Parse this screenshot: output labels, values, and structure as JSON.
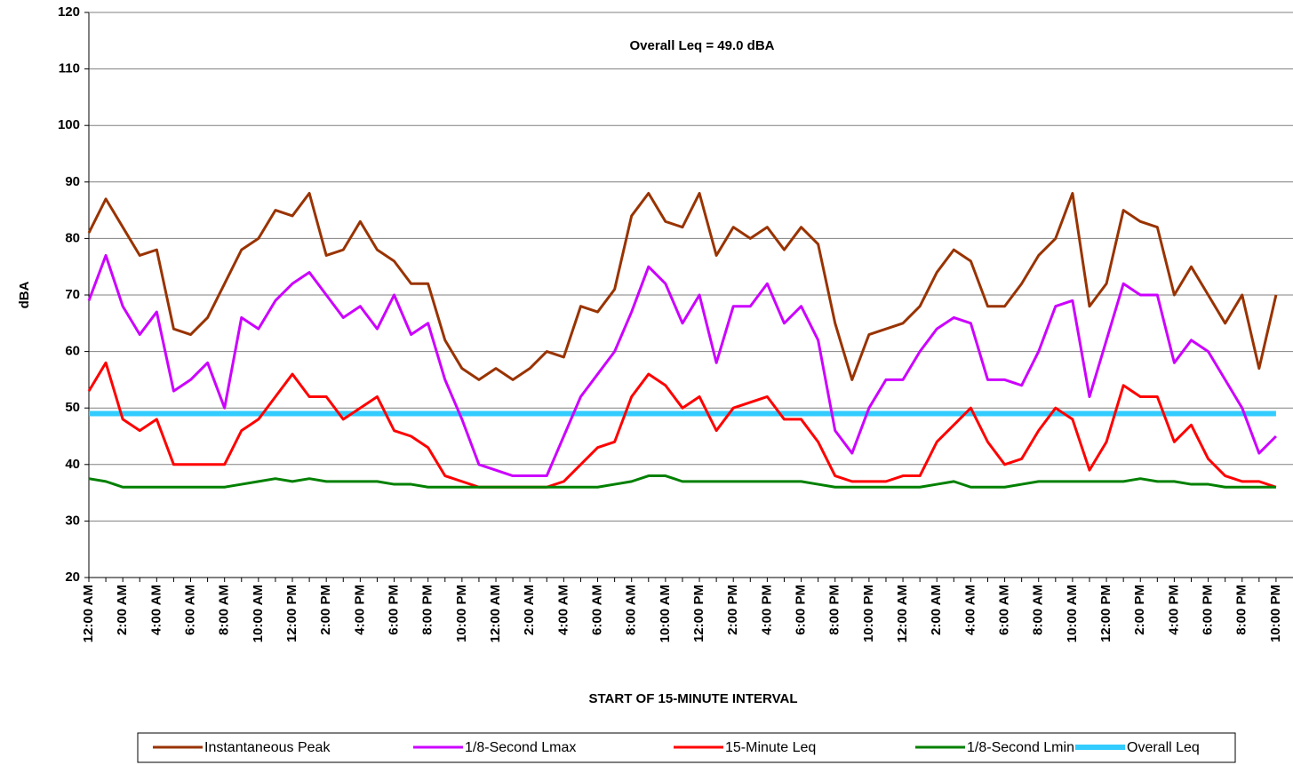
{
  "chart_data": {
    "type": "line",
    "annotation": "Overall Leq = 49.0 dBA",
    "x_label": "START OF 15-MINUTE INTERVAL",
    "y_label": "dBA",
    "categories": [
      "12:00 AM",
      null,
      "2:00 AM",
      null,
      "4:00 AM",
      null,
      "6:00 AM",
      null,
      "8:00 AM",
      null,
      "10:00 AM",
      null,
      "12:00 PM",
      null,
      "2:00 PM",
      null,
      "4:00 PM",
      null,
      "6:00 PM",
      null,
      "8:00 PM",
      null,
      "10:00 PM",
      null,
      "12:00 AM",
      null,
      "2:00 AM",
      null,
      "4:00 AM",
      null,
      "6:00 AM",
      null,
      "8:00 AM",
      null,
      "10:00 AM",
      null,
      "12:00 PM",
      null,
      "2:00 PM",
      null,
      "4:00 PM",
      null,
      "6:00 PM",
      null,
      "8:00 PM",
      null,
      "10:00 PM",
      null,
      "12:00 AM",
      null,
      "2:00 AM",
      null,
      "4:00 AM",
      null,
      "6:00 AM",
      null,
      "8:00 AM",
      null,
      "10:00 AM",
      null,
      "12:00 PM",
      null,
      "2:00 PM",
      null,
      "4:00 PM",
      null,
      "6:00 PM",
      null,
      "8:00 PM",
      null,
      "10:00 PM"
    ],
    "series": [
      {
        "name": "Instantaneous Peak",
        "color": "#993300",
        "values": [
          81,
          87,
          82,
          77,
          78,
          64,
          63,
          66,
          72,
          78,
          80,
          85,
          84,
          88,
          77,
          78,
          83,
          78,
          76,
          72,
          72,
          62,
          57,
          55,
          57,
          55,
          57,
          60,
          59,
          68,
          67,
          71,
          84,
          88,
          83,
          82,
          88,
          77,
          82,
          80,
          82,
          78,
          82,
          79,
          65,
          55,
          63,
          64,
          65,
          68,
          74,
          78,
          76,
          68,
          68,
          72,
          77,
          80,
          88,
          68,
          72,
          85,
          83,
          82,
          70,
          75,
          70,
          65,
          70,
          57,
          70
        ]
      },
      {
        "name": "1/8-Second Lmax",
        "color": "#cc00ff",
        "values": [
          69,
          77,
          68,
          63,
          67,
          53,
          55,
          58,
          50,
          66,
          64,
          69,
          72,
          74,
          70,
          66,
          68,
          64,
          70,
          63,
          65,
          55,
          48,
          40,
          39,
          38,
          38,
          38,
          45,
          52,
          56,
          60,
          67,
          75,
          72,
          65,
          70,
          58,
          68,
          68,
          72,
          65,
          68,
          62,
          46,
          42,
          50,
          55,
          55,
          60,
          64,
          66,
          65,
          55,
          55,
          54,
          60,
          68,
          69,
          52,
          62,
          72,
          70,
          70,
          58,
          62,
          60,
          55,
          50,
          42,
          45
        ]
      },
      {
        "name": "15-Minute Leq",
        "color": "#ff0000",
        "values": [
          53,
          58,
          48,
          46,
          48,
          40,
          40,
          40,
          40,
          46,
          48,
          52,
          56,
          52,
          52,
          48,
          50,
          52,
          46,
          45,
          43,
          38,
          37,
          36,
          36,
          36,
          36,
          36,
          37,
          40,
          43,
          44,
          52,
          56,
          54,
          50,
          52,
          46,
          50,
          51,
          52,
          48,
          48,
          44,
          38,
          37,
          37,
          37,
          38,
          38,
          44,
          47,
          50,
          44,
          40,
          41,
          46,
          50,
          48,
          39,
          44,
          54,
          52,
          52,
          44,
          47,
          41,
          38,
          37,
          37,
          36
        ]
      },
      {
        "name": "1/8-Second Lmin",
        "color": "#008000",
        "values": [
          37.5,
          37,
          36,
          36,
          36,
          36,
          36,
          36,
          36,
          36.5,
          37,
          37.5,
          37,
          37.5,
          37,
          37,
          37,
          37,
          36.5,
          36.5,
          36,
          36,
          36,
          36,
          36,
          36,
          36,
          36,
          36,
          36,
          36,
          36.5,
          37,
          38,
          38,
          37,
          37,
          37,
          37,
          37,
          37,
          37,
          37,
          36.5,
          36,
          36,
          36,
          36,
          36,
          36,
          36.5,
          37,
          36,
          36,
          36,
          36.5,
          37,
          37,
          37,
          37,
          37,
          37,
          37.5,
          37,
          37,
          36.5,
          36.5,
          36,
          36,
          36,
          36
        ]
      },
      {
        "name": "Overall Leq",
        "color": "#33ccff",
        "values": [
          49,
          49,
          49,
          49,
          49,
          49,
          49,
          49,
          49,
          49,
          49,
          49,
          49,
          49,
          49,
          49,
          49,
          49,
          49,
          49,
          49,
          49,
          49,
          49,
          49,
          49,
          49,
          49,
          49,
          49,
          49,
          49,
          49,
          49,
          49,
          49,
          49,
          49,
          49,
          49,
          49,
          49,
          49,
          49,
          49,
          49,
          49,
          49,
          49,
          49,
          49,
          49,
          49,
          49,
          49,
          49,
          49,
          49,
          49,
          49,
          49,
          49,
          49,
          49,
          49,
          49,
          49,
          49,
          49,
          49,
          49
        ]
      }
    ],
    "ylim": [
      20,
      120
    ],
    "yticks": [
      20,
      30,
      40,
      50,
      60,
      70,
      80,
      90,
      100,
      110,
      120
    ],
    "grid": true,
    "legend": "bottom"
  }
}
